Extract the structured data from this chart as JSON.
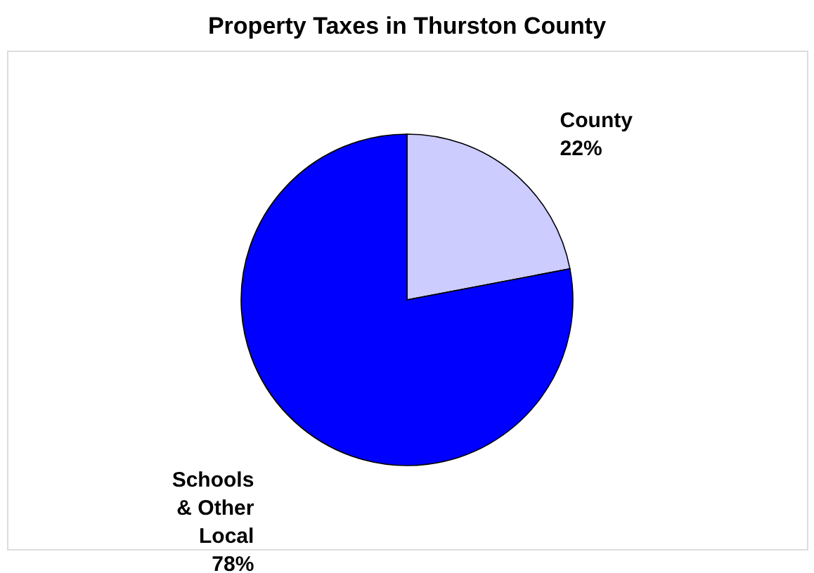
{
  "chart_data": {
    "type": "pie",
    "title": "Property Taxes in Thurston County",
    "categories": [
      "County",
      "Schools & Other Local"
    ],
    "values": [
      22,
      78
    ],
    "colors": [
      "#ccccff",
      "#0000ff"
    ],
    "value_labels": [
      "22%",
      "78%"
    ]
  }
}
